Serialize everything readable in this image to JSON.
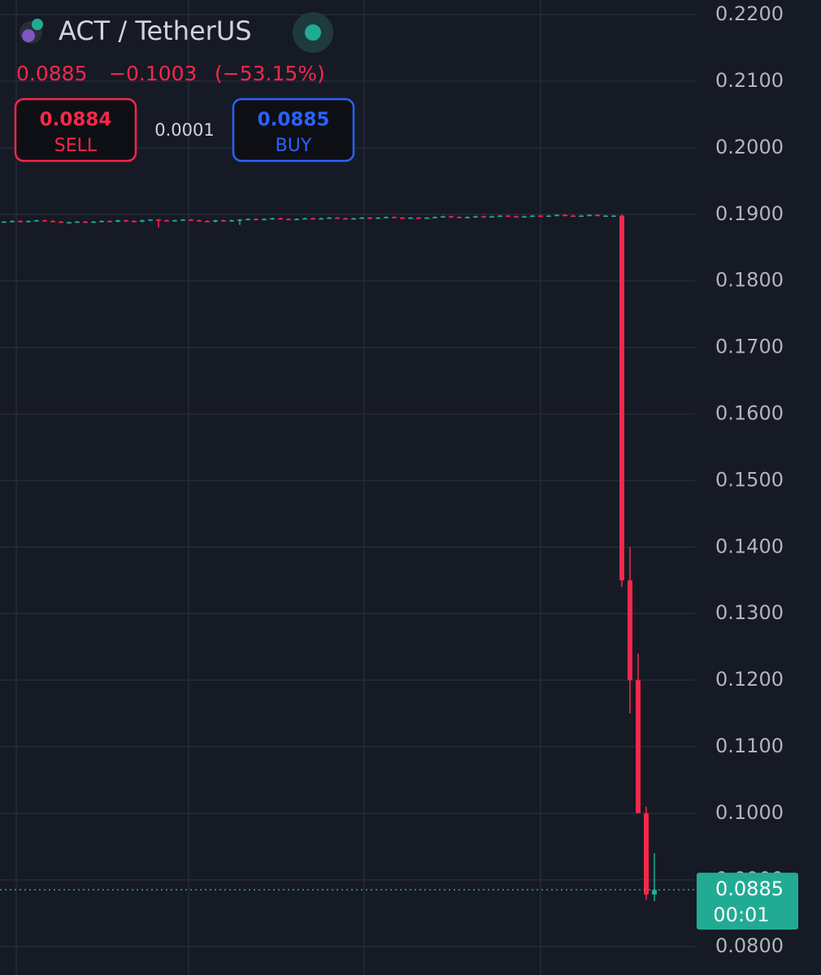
{
  "header": {
    "symbol": "ACT / TetherUS",
    "last": "0.0885",
    "change": "−0.1003",
    "change_pct": "(−53.15%)"
  },
  "trade": {
    "sell_price": "0.0884",
    "sell_label": "SELL",
    "spread": "0.0001",
    "buy_price": "0.0885",
    "buy_label": "BUY"
  },
  "chart_data": {
    "type": "candlestick",
    "up_color": "#22ab94",
    "down_color": "#f7274a",
    "grid": true,
    "ylim": [
      0.0757,
      0.2222
    ],
    "yticks": [
      {
        "value": 0.08,
        "label": "0.0800"
      },
      {
        "value": 0.09,
        "label": "0.0900"
      },
      {
        "value": 0.1,
        "label": "0.1000"
      },
      {
        "value": 0.11,
        "label": "0.1100"
      },
      {
        "value": 0.12,
        "label": "0.1200"
      },
      {
        "value": 0.13,
        "label": "0.1300"
      },
      {
        "value": 0.14,
        "label": "0.1400"
      },
      {
        "value": 0.15,
        "label": "0.1500"
      },
      {
        "value": 0.16,
        "label": "0.1600"
      },
      {
        "value": 0.17,
        "label": "0.1700"
      },
      {
        "value": 0.18,
        "label": "0.1800"
      },
      {
        "value": 0.19,
        "label": "0.1900"
      },
      {
        "value": 0.2,
        "label": "0.2000"
      },
      {
        "value": 0.21,
        "label": "0.2100"
      },
      {
        "value": 0.22,
        "label": "0.2200"
      }
    ],
    "last_price": {
      "value": 0.0885,
      "label": "0.0885"
    },
    "countdown": "00:01",
    "open": [
      0.1889,
      0.1889,
      0.189,
      0.1889,
      0.189,
      0.1891,
      0.189,
      0.1889,
      0.1888,
      0.1888,
      0.1889,
      0.1888,
      0.1889,
      0.189,
      0.1889,
      0.1891,
      0.189,
      0.1889,
      0.1891,
      0.1892,
      0.1891,
      0.189,
      0.1891,
      0.1892,
      0.1891,
      0.189,
      0.1889,
      0.1891,
      0.189,
      0.1891,
      0.1892,
      0.1893,
      0.1892,
      0.1893,
      0.1894,
      0.1893,
      0.1892,
      0.1893,
      0.1894,
      0.1893,
      0.1894,
      0.1895,
      0.1894,
      0.1893,
      0.1894,
      0.1895,
      0.1894,
      0.1895,
      0.1896,
      0.1895,
      0.1894,
      0.1895,
      0.1894,
      0.1895,
      0.1896,
      0.1897,
      0.1896,
      0.1895,
      0.1896,
      0.1897,
      0.1896,
      0.1897,
      0.1898,
      0.1897,
      0.1896,
      0.1897,
      0.1898,
      0.1897,
      0.1898,
      0.1899,
      0.1898,
      0.1897,
      0.1898,
      0.1899,
      0.1898,
      0.1898,
      0.1898,
      0.135,
      0.12,
      0.1,
      0.0878
    ],
    "high": [
      0.189,
      0.1891,
      0.1891,
      0.1891,
      0.1892,
      0.1892,
      0.1891,
      0.189,
      0.1889,
      0.189,
      0.189,
      0.189,
      0.1891,
      0.1891,
      0.1892,
      0.1892,
      0.1891,
      0.1892,
      0.1893,
      0.1893,
      0.1892,
      0.1892,
      0.1893,
      0.1893,
      0.1892,
      0.1891,
      0.1892,
      0.1892,
      0.1892,
      0.1893,
      0.1894,
      0.1894,
      0.1894,
      0.1895,
      0.1895,
      0.1894,
      0.1894,
      0.1895,
      0.1895,
      0.1895,
      0.1896,
      0.1896,
      0.1895,
      0.1895,
      0.1896,
      0.1896,
      0.1896,
      0.1897,
      0.1897,
      0.1896,
      0.1896,
      0.1896,
      0.1896,
      0.1897,
      0.1898,
      0.1898,
      0.1897,
      0.1897,
      0.1898,
      0.1898,
      0.1898,
      0.1899,
      0.1899,
      0.1898,
      0.1898,
      0.1899,
      0.1899,
      0.1899,
      0.19,
      0.19,
      0.1899,
      0.1899,
      0.19,
      0.19,
      0.1899,
      0.1899,
      0.19,
      0.14,
      0.124,
      0.101,
      0.094
    ],
    "low": [
      0.1888,
      0.1888,
      0.1888,
      0.1888,
      0.1889,
      0.1889,
      0.1888,
      0.1887,
      0.1887,
      0.1887,
      0.1887,
      0.1887,
      0.1888,
      0.1888,
      0.1888,
      0.1889,
      0.1888,
      0.1888,
      0.189,
      0.188,
      0.1889,
      0.1889,
      0.189,
      0.189,
      0.1889,
      0.1888,
      0.1888,
      0.1889,
      0.1889,
      0.1884,
      0.1891,
      0.1891,
      0.1891,
      0.1892,
      0.1892,
      0.1891,
      0.1891,
      0.1892,
      0.1892,
      0.1892,
      0.1893,
      0.1893,
      0.1892,
      0.1892,
      0.1893,
      0.1893,
      0.1893,
      0.1894,
      0.1894,
      0.1893,
      0.1893,
      0.1893,
      0.1893,
      0.1894,
      0.1895,
      0.1895,
      0.1894,
      0.1894,
      0.1895,
      0.1895,
      0.1895,
      0.1896,
      0.1896,
      0.1895,
      0.1895,
      0.1896,
      0.1896,
      0.1896,
      0.1897,
      0.1897,
      0.1896,
      0.1896,
      0.1897,
      0.1897,
      0.1897,
      0.1897,
      0.134,
      0.115,
      0.1,
      0.087,
      0.0868
    ],
    "close": [
      0.1889,
      0.189,
      0.1889,
      0.189,
      0.1891,
      0.189,
      0.1889,
      0.1888,
      0.1888,
      0.1889,
      0.1888,
      0.1889,
      0.189,
      0.1889,
      0.1891,
      0.189,
      0.1889,
      0.1891,
      0.1892,
      0.1891,
      0.189,
      0.1891,
      0.1892,
      0.1891,
      0.189,
      0.1889,
      0.1891,
      0.189,
      0.1891,
      0.1892,
      0.1893,
      0.1892,
      0.1893,
      0.1894,
      0.1893,
      0.1892,
      0.1893,
      0.1894,
      0.1893,
      0.1894,
      0.1895,
      0.1894,
      0.1893,
      0.1894,
      0.1895,
      0.1894,
      0.1895,
      0.1896,
      0.1895,
      0.1894,
      0.1895,
      0.1894,
      0.1895,
      0.1896,
      0.1897,
      0.1896,
      0.1895,
      0.1896,
      0.1897,
      0.1896,
      0.1897,
      0.1898,
      0.1897,
      0.1896,
      0.1897,
      0.1898,
      0.1897,
      0.1898,
      0.1899,
      0.1898,
      0.1897,
      0.1898,
      0.1899,
      0.1898,
      0.1898,
      0.1898,
      0.135,
      0.12,
      0.1,
      0.0878,
      0.0885
    ]
  }
}
